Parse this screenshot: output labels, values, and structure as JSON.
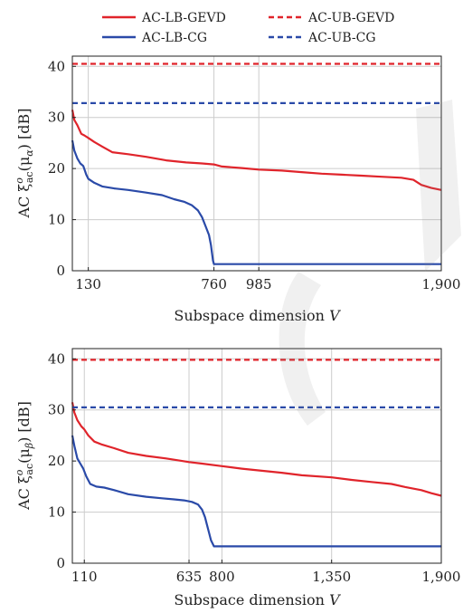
{
  "legend": {
    "items": [
      {
        "label": "AC-LB-GEVD",
        "color": "#e0242b",
        "dash": "solid"
      },
      {
        "label": "AC-UB-GEVD",
        "color": "#e0242b",
        "dash": "dashed"
      },
      {
        "label": "AC-LB-CG",
        "color": "#2a4aa8",
        "dash": "solid"
      },
      {
        "label": "AC-UB-CG",
        "color": "#2a4aa8",
        "dash": "dashed"
      }
    ]
  },
  "chart_data": [
    {
      "type": "line",
      "xlabel_text": "Subspace dimension",
      "xlabel_var": "V",
      "ylabel_prefix": "AC ξ",
      "ylabel_sup": "o",
      "ylabel_sub": "ac",
      "ylabel_arg": "(μ",
      "ylabel_arg_sub": "α",
      "ylabel_suffix": ") [dB]",
      "xlim": [
        50,
        1900
      ],
      "ylim": [
        0,
        42
      ],
      "xticks": [
        130,
        760,
        985,
        1900
      ],
      "xtick_labels": [
        "130",
        "760",
        "985",
        "1,900"
      ],
      "yticks": [
        0,
        10,
        20,
        30,
        40
      ],
      "ytick_labels": [
        "0",
        "10",
        "20",
        "30",
        "40"
      ],
      "grid": true,
      "series": [
        {
          "name": "AC-LB-GEVD",
          "color": "#e0242b",
          "dash": "solid",
          "x": [
            50,
            60,
            75,
            95,
            110,
            130,
            160,
            200,
            250,
            330,
            420,
            520,
            620,
            700,
            760,
            800,
            900,
            985,
            1100,
            1200,
            1300,
            1400,
            1500,
            1600,
            1700,
            1760,
            1800,
            1850,
            1900
          ],
          "y": [
            31.5,
            29.5,
            28.5,
            26.8,
            26.5,
            26.0,
            25.2,
            24.3,
            23.2,
            22.8,
            22.3,
            21.6,
            21.2,
            21.0,
            20.8,
            20.4,
            20.1,
            19.8,
            19.6,
            19.3,
            19.0,
            18.8,
            18.6,
            18.4,
            18.2,
            17.8,
            16.8,
            16.2,
            15.8
          ]
        },
        {
          "name": "AC-LB-CG",
          "color": "#2a4aa8",
          "dash": "solid",
          "x": [
            50,
            60,
            75,
            90,
            105,
            120,
            130,
            160,
            200,
            260,
            330,
            420,
            500,
            560,
            610,
            650,
            680,
            700,
            720,
            735,
            745,
            755,
            760,
            1000,
            1500,
            1900
          ],
          "y": [
            25.5,
            23.5,
            22.0,
            21.0,
            20.5,
            18.8,
            18.0,
            17.2,
            16.5,
            16.1,
            15.8,
            15.3,
            14.8,
            14.0,
            13.5,
            12.8,
            11.8,
            10.5,
            8.5,
            7.0,
            5.0,
            2.0,
            1.3,
            1.3,
            1.3,
            1.3
          ]
        },
        {
          "name": "AC-UB-GEVD",
          "color": "#e0242b",
          "dash": "dashed",
          "x": [
            50,
            1900
          ],
          "y": [
            40.5,
            40.5
          ]
        },
        {
          "name": "AC-UB-CG",
          "color": "#2a4aa8",
          "dash": "dashed",
          "x": [
            50,
            1900
          ],
          "y": [
            32.8,
            32.8
          ]
        }
      ]
    },
    {
      "type": "line",
      "xlabel_text": "Subspace dimension",
      "xlabel_var": "V",
      "ylabel_prefix": "AC ξ",
      "ylabel_sup": "o",
      "ylabel_sub": "ac",
      "ylabel_arg": "(μ",
      "ylabel_arg_sub": "β",
      "ylabel_suffix": ") [dB]",
      "xlim": [
        50,
        1900
      ],
      "ylim": [
        0,
        42
      ],
      "xticks": [
        110,
        635,
        800,
        1350,
        1900
      ],
      "xtick_labels": [
        "110",
        "635",
        "800",
        "1,350",
        "1,900"
      ],
      "yticks": [
        0,
        10,
        20,
        30,
        40
      ],
      "ytick_labels": [
        "0",
        "10",
        "20",
        "30",
        "40"
      ],
      "grid": true,
      "series": [
        {
          "name": "AC-LB-GEVD",
          "color": "#e0242b",
          "dash": "solid",
          "x": [
            50,
            60,
            75,
            95,
            110,
            130,
            160,
            200,
            260,
            330,
            420,
            520,
            600,
            635,
            700,
            800,
            900,
            1000,
            1100,
            1200,
            1350,
            1450,
            1550,
            1650,
            1720,
            1800,
            1850,
            1900
          ],
          "y": [
            31.5,
            29.5,
            28.0,
            26.8,
            26.2,
            25.0,
            23.8,
            23.2,
            22.5,
            21.6,
            21.0,
            20.5,
            20.0,
            19.8,
            19.5,
            19.0,
            18.5,
            18.1,
            17.7,
            17.2,
            16.8,
            16.3,
            15.9,
            15.5,
            14.9,
            14.3,
            13.7,
            13.2
          ]
        },
        {
          "name": "AC-LB-CG",
          "color": "#2a4aa8",
          "dash": "solid",
          "x": [
            50,
            60,
            75,
            90,
            105,
            120,
            140,
            170,
            210,
            260,
            330,
            420,
            500,
            560,
            610,
            650,
            680,
            700,
            715,
            725,
            735,
            745,
            760,
            1000,
            1500,
            1900
          ],
          "y": [
            25.0,
            23.0,
            20.5,
            19.5,
            18.5,
            17.0,
            15.5,
            15.0,
            14.8,
            14.3,
            13.5,
            13.0,
            12.7,
            12.5,
            12.3,
            12.0,
            11.5,
            10.5,
            9.0,
            7.5,
            6.0,
            4.5,
            3.3,
            3.3,
            3.3,
            3.3
          ]
        },
        {
          "name": "AC-UB-GEVD",
          "color": "#e0242b",
          "dash": "dashed",
          "x": [
            50,
            1900
          ],
          "y": [
            39.8,
            39.8
          ]
        },
        {
          "name": "AC-UB-CG",
          "color": "#2a4aa8",
          "dash": "dashed",
          "x": [
            50,
            1900
          ],
          "y": [
            30.5,
            30.5
          ]
        }
      ]
    }
  ]
}
